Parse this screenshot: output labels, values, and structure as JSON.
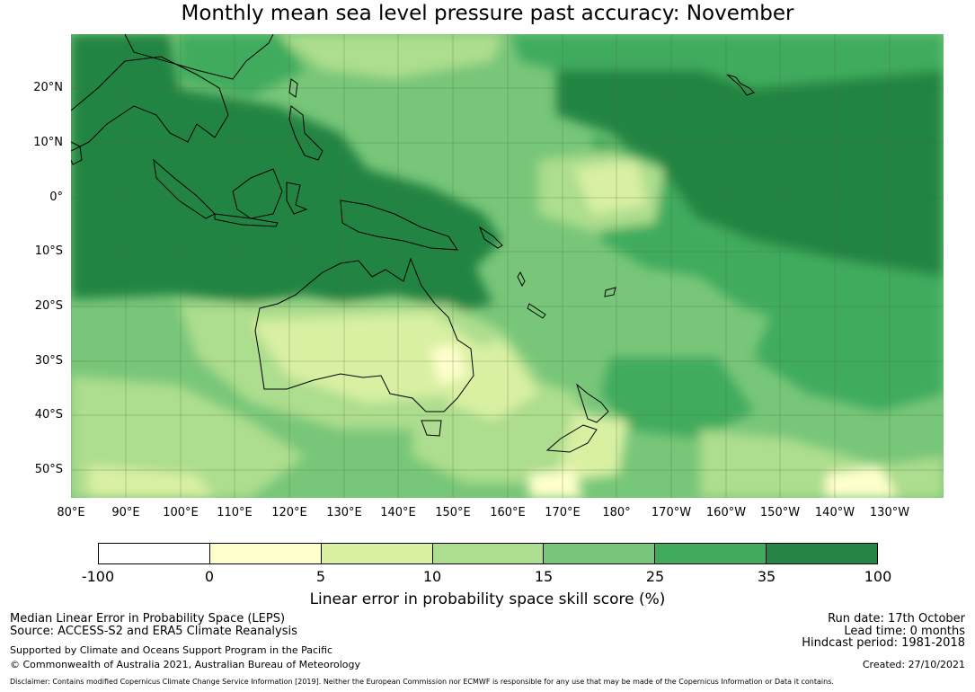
{
  "title": "Monthly mean sea level pressure past accuracy: November",
  "lat_labels": [
    "20°N",
    "10°N",
    "0°",
    "10°S",
    "20°S",
    "30°S",
    "40°S",
    "50°S"
  ],
  "lon_labels": [
    "80°E",
    "90°E",
    "100°E",
    "110°E",
    "120°E",
    "130°E",
    "140°E",
    "150°E",
    "160°E",
    "170°E",
    "180°",
    "170°W",
    "160°W",
    "150°W",
    "140°W",
    "130°W"
  ],
  "colorbar": {
    "ticks": [
      "-100",
      "0",
      "5",
      "10",
      "15",
      "25",
      "35",
      "100"
    ],
    "colors": [
      "#ffffff",
      "#ffffcc",
      "#d9f0a3",
      "#addd8e",
      "#78c679",
      "#41ab5d",
      "#238443"
    ],
    "label": "Linear error in probability space skill score (%)"
  },
  "footer": {
    "left_line1": "Median Linear Error in Probability Space (LEPS)",
    "left_line2": "Source: ACCESS-S2 and ERA5 Climate Reanalysis",
    "left_line3": "Supported by Climate and Oceans Support Program in the Pacific",
    "left_line4": "© Commonwealth of Australia 2021, Australian Bureau of Meteorology",
    "right_line1": "Run date: 17th October",
    "right_line2": "Lead time: 0 months",
    "right_line3": "Hindcast period: 1981-2018",
    "right_line4": "Created: 27/10/2021",
    "disclaimer": "Disclaimer: Contains modified Copernicus Climate Change Service Information [2019]. Neither the European Commission nor ECMWF is responsible for any use that may be made of the Copernicus Information or Data it contains."
  }
}
